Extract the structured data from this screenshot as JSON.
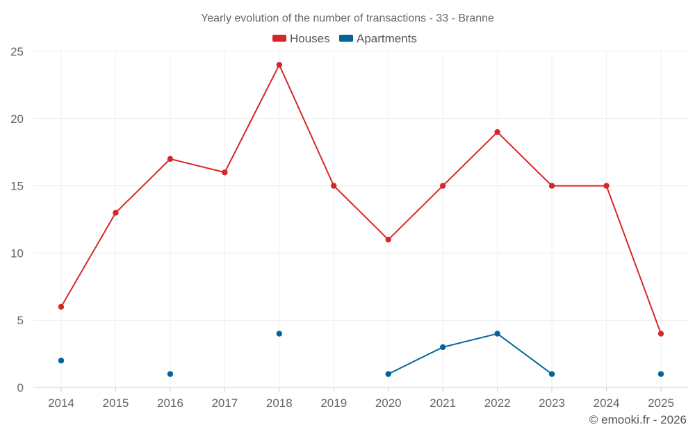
{
  "chart_data": {
    "type": "line",
    "title": "Yearly evolution of the number of transactions - 33 - Branne",
    "credit": "© emooki.fr - 2026",
    "categories": [
      "2014",
      "2015",
      "2016",
      "2017",
      "2018",
      "2019",
      "2020",
      "2021",
      "2022",
      "2023",
      "2024",
      "2025"
    ],
    "ylim": [
      0,
      25
    ],
    "yticks": [
      0,
      5,
      10,
      15,
      20,
      25
    ],
    "grid": true,
    "legend_position": "top-center",
    "series": [
      {
        "name": "Houses",
        "color": "#d62728",
        "values": [
          6,
          13,
          17,
          16,
          24,
          15,
          11,
          15,
          19,
          15,
          15,
          4
        ]
      },
      {
        "name": "Apartments",
        "color": "#006699",
        "values": [
          2,
          null,
          1,
          null,
          4,
          null,
          1,
          3,
          4,
          1,
          null,
          1
        ]
      }
    ]
  }
}
